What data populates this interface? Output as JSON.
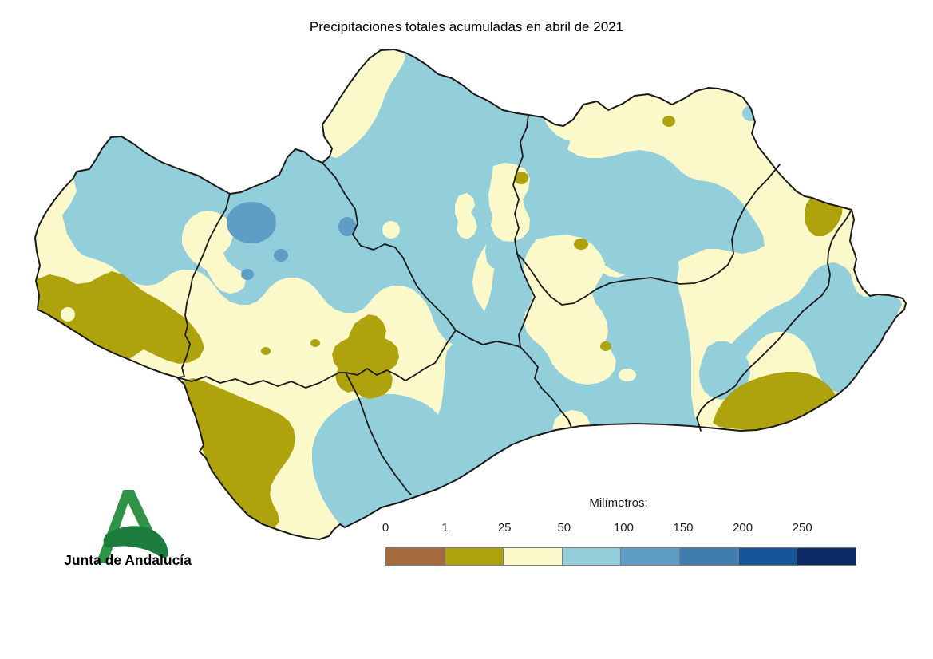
{
  "title": "Precipitaciones totales acumuladas en abril de 2021",
  "legend": {
    "label": "Milímetros:",
    "ticks": [
      "0",
      "1",
      "25",
      "50",
      "100",
      "150",
      "200",
      "250"
    ],
    "bins": [
      {
        "range": "0-1",
        "color_key": "precip_0_1"
      },
      {
        "range": "1-25",
        "color_key": "precip_1_25"
      },
      {
        "range": "25-50",
        "color_key": "precip_25_50"
      },
      {
        "range": "50-100",
        "color_key": "precip_50_100"
      },
      {
        "range": "100-150",
        "color_key": "precip_100_150"
      },
      {
        "range": "150-200",
        "color_key": "precip_150_200"
      },
      {
        "range": "200-250",
        "color_key": "precip_200_250"
      },
      {
        "range": "250+",
        "color_key": "precip_250_plus"
      }
    ]
  },
  "logo": {
    "text": "Junta de Andalucía"
  },
  "map": {
    "region": "Andalucía"
  },
  "colors": {
    "precip_0_1": "#A5693E",
    "precip_1_25": "#AFA30D",
    "precip_25_50": "#FBF8CA",
    "precip_50_100": "#93CFDA",
    "precip_100_150": "#5E9DC6",
    "precip_150_200": "#3F7DB0",
    "precip_200_250": "#16549A",
    "precip_250_plus": "#0C2C68",
    "boundary": "#1A1A1A",
    "logo_green": "#2F9247",
    "logo_green_dark": "#1B7C3D"
  }
}
